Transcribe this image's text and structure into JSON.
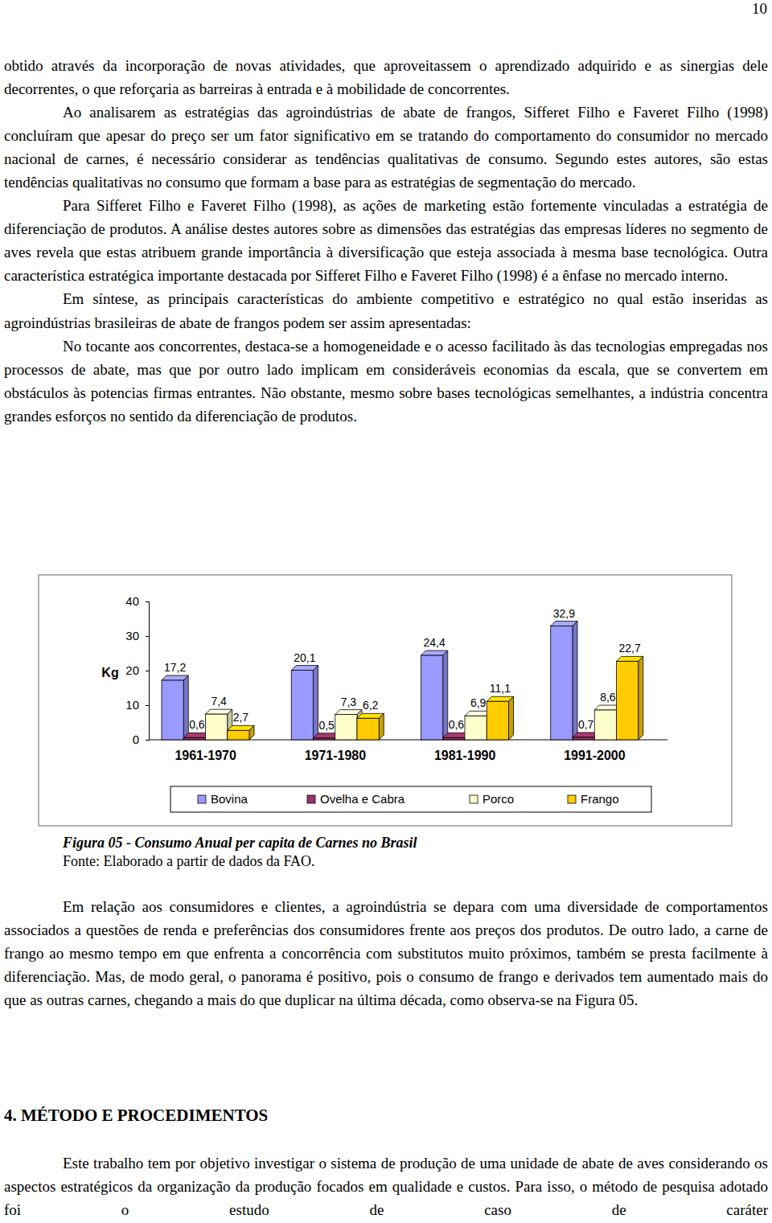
{
  "page_number": "10",
  "body_before": [
    "obtido através da incorporação de novas atividades, que aproveitassem o aprendizado adquirido e as sinergias dele decorrentes, o que reforçaria as barreiras à entrada e à mobilidade de concorrentes.",
    "Ao analisarem as estratégias das agroindústrias de abate de frangos, Sifferet Filho e Faveret Filho (1998) concluíram que apesar do preço ser um fator significativo em se tratando do comportamento do consumidor no mercado nacional de carnes, é necessário considerar as tendências qualitativas de consumo. Segundo estes autores, são estas tendências qualitativas no consumo que formam a base para as estratégias de segmentação do mercado.",
    "Para Sifferet Filho e Faveret Filho (1998), as ações de marketing estão fortemente vinculadas a estratégia de diferenciação de produtos. A análise destes autores sobre as dimensões das estratégias das empresas líderes no segmento de aves revela que estas atribuem grande importância à diversificação que esteja associada à mesma base tecnológica. Outra característica estratégica importante destacada por Sifferet Filho e Faveret Filho (1998) é a ênfase no mercado interno.",
    "Em síntese, as principais características do ambiente competitivo e estratégico no qual estão inseridas as agroindústrias brasileiras de abate de frangos podem ser assim apresentadas:",
    "No tocante aos concorrentes, destaca-se a homogeneidade e o acesso facilitado às das tecnologias empregadas nos processos de abate, mas que por outro lado implicam em consideráveis economias da escala, que se convertem em obstáculos às potencias firmas entrantes. Não obstante, mesmo sobre bases tecnológicas semelhantes, a indústria concentra grandes esforços no sentido da diferenciação de produtos."
  ],
  "chart_data": {
    "type": "bar",
    "categories": [
      "1961-1970",
      "1971-1980",
      "1981-1990",
      "1991-2000"
    ],
    "series": [
      {
        "name": "Bovina",
        "color": "#9999ff",
        "values": [
          17.2,
          20.1,
          24.4,
          32.9
        ],
        "value_labels": [
          "17,2",
          "20,1",
          "24,4",
          "32,9"
        ]
      },
      {
        "name": "Ovelha e Cabra",
        "color": "#993366",
        "values": [
          0.6,
          0.5,
          0.6,
          0.7
        ],
        "value_labels": [
          "0,6",
          "0,5",
          "0,6",
          "0,7"
        ]
      },
      {
        "name": "Porco",
        "color": "#ffffcc",
        "values": [
          7.4,
          7.3,
          6.9,
          8.6
        ],
        "value_labels": [
          "7,4",
          "7,3",
          "6,9",
          "8,6"
        ]
      },
      {
        "name": "Frango",
        "color": "#ffcc00",
        "values": [
          2.7,
          6.2,
          11.1,
          22.7
        ],
        "value_labels": [
          "2,7",
          "6,2",
          "11,1",
          "22,7"
        ]
      }
    ],
    "y_label": "Kg",
    "ylim": [
      0,
      40
    ],
    "yticks": [
      0,
      10,
      20,
      30,
      40
    ],
    "grid": false,
    "legend": "bottom",
    "data_labels": true
  },
  "figure": {
    "caption": "Figura 05 - Consumo Anual per capita de Carnes no Brasil",
    "source": "Fonte: Elaborado a partir de dados da FAO."
  },
  "body_after": [
    "Em relação aos consumidores e clientes, a agroindústria se depara com uma diversidade de comportamentos associados a questões de renda e preferências dos consumidores frente aos preços dos produtos. De outro lado, a carne de frango ao mesmo tempo em que enfrenta a concorrência com substitutos muito próximos, também se presta facilmente à diferenciação. Mas, de modo geral, o panorama é positivo, pois o consumo de frango e derivados tem aumentado mais do que as outras carnes, chegando a mais do que duplicar na última década, como observa-se na Figura 05."
  ],
  "section": {
    "heading": "4. MÉTODO E PROCEDIMENTOS",
    "paragraphs": [
      "Este trabalho tem por objetivo investigar o sistema de produção de uma unidade de abate de aves considerando os aspectos estratégicos da organização da produção focados em qualidade e custos. Para isso, o método de pesquisa adotado foi o estudo de caso de caráter"
    ]
  }
}
